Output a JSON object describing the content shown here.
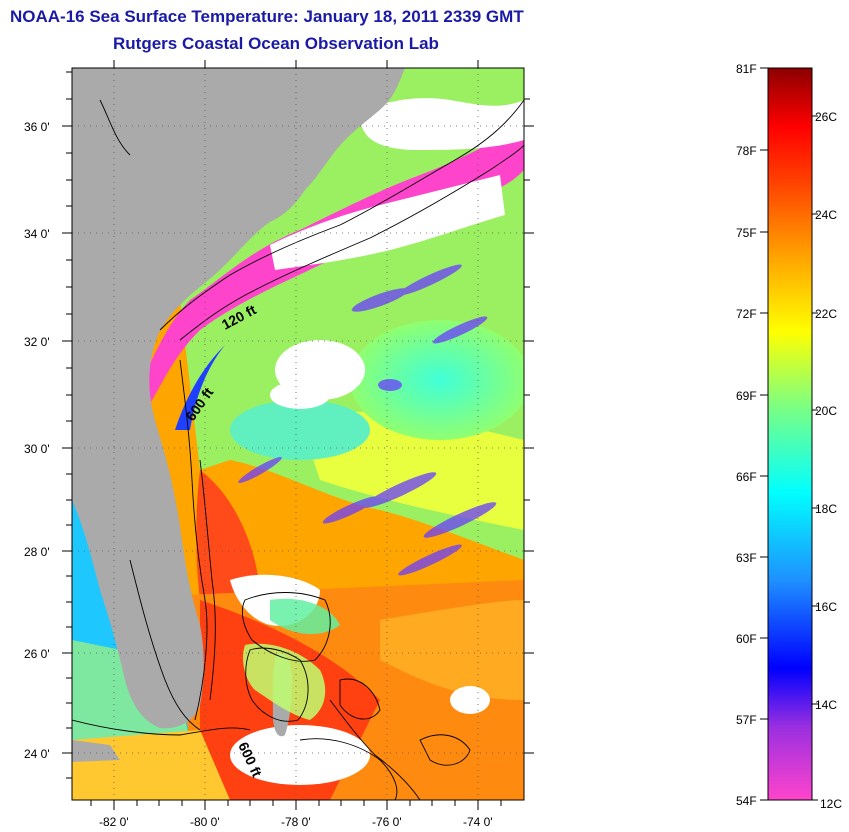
{
  "header": {
    "title": "NOAA-16 Sea Surface Temperature:  January 18, 2011 2339 GMT",
    "subtitle": "Rutgers Coastal Ocean Observation Lab"
  },
  "map": {
    "lat_range": [
      23.0,
      37.1
    ],
    "lon_range": [
      -83.0,
      -73.0
    ],
    "lat_ticks": [
      "36 0'",
      "34 0'",
      "32 0'",
      "30 0'",
      "28 0'",
      "26 0'",
      "24 0'"
    ],
    "lon_ticks": [
      "-82 0'",
      "-80 0'",
      "-78 0'",
      "-76 0'",
      "-74 0'"
    ],
    "contour_labels": [
      "120 ft",
      "600 ft",
      "600 ft"
    ],
    "land_color": "#aaaaaa",
    "cloud_color": "#ffffff"
  },
  "colorbar": {
    "fahrenheit_labels": [
      "81F",
      "78F",
      "75F",
      "72F",
      "69F",
      "66F",
      "63F",
      "60F",
      "57F",
      "54F"
    ],
    "celsius_labels": [
      "26C",
      "24C",
      "22C",
      "20C",
      "18C",
      "16C",
      "14C",
      "12C"
    ],
    "colors": [
      "#ff44cc",
      "#8a2be2",
      "#0000ff",
      "#1e90ff",
      "#00ffff",
      "#7fff7f",
      "#ffff00",
      "#ffa500",
      "#ff4500",
      "#ff0000",
      "#8b0000"
    ]
  }
}
